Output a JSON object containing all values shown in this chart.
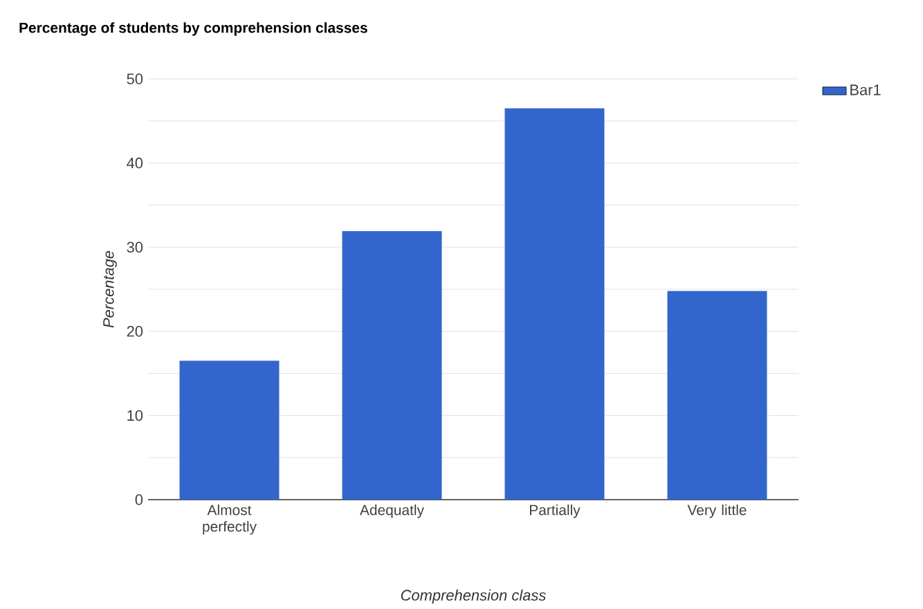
{
  "chart_data": {
    "type": "bar",
    "title": "Percentage of students by comprehension classes",
    "xlabel": "Comprehension class",
    "ylabel": "Percentage",
    "categories": [
      "Almost perfectly",
      "Adequatly",
      "Partially",
      "Very little"
    ],
    "series": [
      {
        "name": "Bar1",
        "color": "#3366cc",
        "values": [
          16.5,
          31.9,
          46.5,
          24.8
        ]
      }
    ],
    "ylim": [
      0,
      50
    ],
    "yticks": [
      0,
      {
        "value": 5,
        "label": null
      },
      10,
      {
        "value": 15,
        "label": null
      },
      20,
      {
        "value": 25,
        "label": null
      },
      30,
      {
        "value": 35,
        "label": null
      },
      40,
      {
        "value": 45,
        "label": null
      },
      50
    ],
    "grid": true,
    "legend": "top right"
  }
}
